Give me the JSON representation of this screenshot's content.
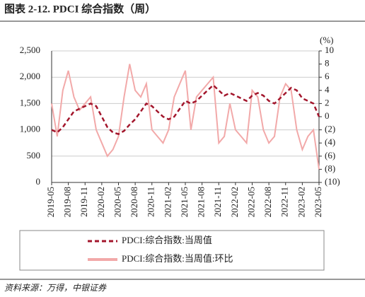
{
  "chart_data": {
    "type": "line",
    "title": "图表 2-12. PDCI 综合指数（周）",
    "y2_unit": "(%)",
    "source": "资料来源：万得，中银证券",
    "x": [
      "2019-05",
      "2019-06",
      "2019-07",
      "2019-08",
      "2019-09",
      "2019-10",
      "2019-11",
      "2019-12",
      "2020-01",
      "2020-02",
      "2020-03",
      "2020-04",
      "2020-05",
      "2020-06",
      "2020-07",
      "2020-08",
      "2020-09",
      "2020-10",
      "2020-11",
      "2020-12",
      "2021-01",
      "2021-02",
      "2021-03",
      "2021-04",
      "2021-05",
      "2021-06",
      "2021-07",
      "2021-08",
      "2021-09",
      "2021-10",
      "2021-11",
      "2021-12",
      "2022-01",
      "2022-02",
      "2022-03",
      "2022-04",
      "2022-05",
      "2022-06",
      "2022-07",
      "2022-08",
      "2022-09",
      "2022-10",
      "2022-11",
      "2022-12",
      "2023-01",
      "2023-02",
      "2023-03",
      "2023-04",
      "2023-05"
    ],
    "xticks": [
      "2019-05",
      "2019-08",
      "2019-11",
      "2020-02",
      "2020-05",
      "2020-08",
      "2020-11",
      "2021-02",
      "2021-05",
      "2021-08",
      "2021-11",
      "2022-02",
      "2022-05",
      "2022-08",
      "2022-11",
      "2023-02",
      "2023-05"
    ],
    "series": [
      {
        "name": "PDCI:综合指数:当周值",
        "color": "#a3162c",
        "dashed": true,
        "values": [
          1000,
          950,
          1050,
          1200,
          1350,
          1400,
          1450,
          1500,
          1450,
          1250,
          1050,
          950,
          920,
          980,
          1100,
          1200,
          1350,
          1500,
          1450,
          1350,
          1250,
          1200,
          1250,
          1400,
          1550,
          1500,
          1550,
          1650,
          1750,
          1850,
          1750,
          1650,
          1700,
          1650,
          1600,
          1550,
          1650,
          1700,
          1650,
          1550,
          1500,
          1600,
          1700,
          1800,
          1750,
          1600,
          1550,
          1500,
          1250
        ]
      },
      {
        "name": "PDCI:综合指数:当周值:环比",
        "color": "#f2a9a9",
        "axis": "y2",
        "values": [
          2,
          -3,
          4,
          7,
          3,
          1,
          2,
          3,
          -2,
          -4,
          -6,
          -5,
          -3,
          3,
          8,
          4,
          3,
          5,
          -2,
          -3,
          -4,
          -2,
          3,
          5,
          7,
          -2,
          3,
          4,
          5,
          6,
          -4,
          -3,
          2,
          -2,
          -3,
          -4,
          4,
          3,
          -2,
          -4,
          -3,
          3,
          5,
          4,
          -2,
          -5,
          -3,
          -2,
          -8
        ]
      }
    ],
    "ylim": [
      0,
      2500
    ],
    "yticks": [
      0,
      500,
      {
        "value": 1000,
        "label": "1,000"
      },
      {
        "value": 1500,
        "label": "1,500"
      },
      {
        "value": 2000,
        "label": "2,000"
      },
      {
        "value": 2500,
        "label": "2,500"
      }
    ],
    "y2lim": [
      -10,
      10
    ],
    "y2ticks": [
      {
        "value": -10,
        "label": "(10)"
      },
      {
        "value": -8,
        "label": "(8)"
      },
      {
        "value": -6,
        "label": "(6)"
      },
      {
        "value": -4,
        "label": "(4)"
      },
      {
        "value": -2,
        "label": "(2)"
      },
      0,
      2,
      4,
      6,
      8,
      10
    ],
    "negative_tick_color": "#e0201b",
    "grid": true
  }
}
